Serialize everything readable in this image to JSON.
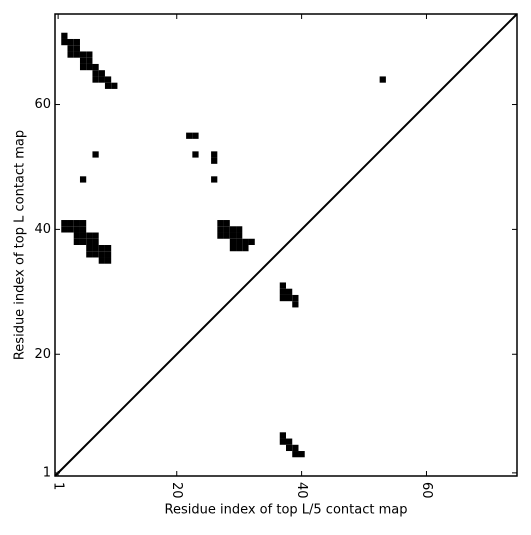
{
  "chart_data": {
    "type": "scatter",
    "marker": "square",
    "color": "#000000",
    "diagonal": true,
    "xlabel": "Residue index of top L/5 contact map",
    "ylabel": "Residue index of top L contact map",
    "xlim": [
      0.5,
      74.5
    ],
    "ylim": [
      0.5,
      74.5
    ],
    "xticks": [
      1,
      20,
      40,
      60
    ],
    "yticks": [
      1,
      20,
      40,
      60
    ],
    "x": [
      2,
      2,
      3,
      4,
      3,
      4,
      3,
      4,
      5,
      6,
      5,
      6,
      5,
      6,
      7,
      7,
      8,
      7,
      8,
      9,
      9,
      10,
      53,
      22,
      23,
      7,
      23,
      26,
      26,
      5,
      26,
      2,
      3,
      4,
      5,
      2,
      3,
      4,
      5,
      4,
      5,
      6,
      7,
      4,
      5,
      6,
      7,
      6,
      7,
      8,
      9,
      6,
      7,
      8,
      9,
      8,
      9,
      27,
      28,
      27,
      28,
      29,
      30,
      27,
      28,
      29,
      30,
      29,
      30,
      31,
      32,
      29,
      30,
      31,
      37,
      37,
      38,
      37,
      38,
      39,
      39,
      37,
      37,
      38,
      38,
      39,
      39,
      40
    ],
    "y": [
      71,
      70,
      70,
      70,
      69,
      69,
      68,
      68,
      68,
      68,
      67,
      67,
      66,
      66,
      66,
      65,
      65,
      64,
      64,
      64,
      63,
      63,
      64,
      55,
      55,
      52,
      52,
      52,
      51,
      48,
      48,
      41,
      41,
      41,
      41,
      40,
      40,
      40,
      40,
      39,
      39,
      39,
      39,
      38,
      38,
      38,
      38,
      37,
      37,
      37,
      37,
      36,
      36,
      36,
      36,
      35,
      35,
      41,
      41,
      40,
      40,
      40,
      40,
      39,
      39,
      39,
      39,
      38,
      38,
      38,
      38,
      37,
      37,
      37,
      31,
      30,
      30,
      29,
      29,
      29,
      28,
      7,
      6,
      6,
      5,
      5,
      4,
      4
    ]
  }
}
